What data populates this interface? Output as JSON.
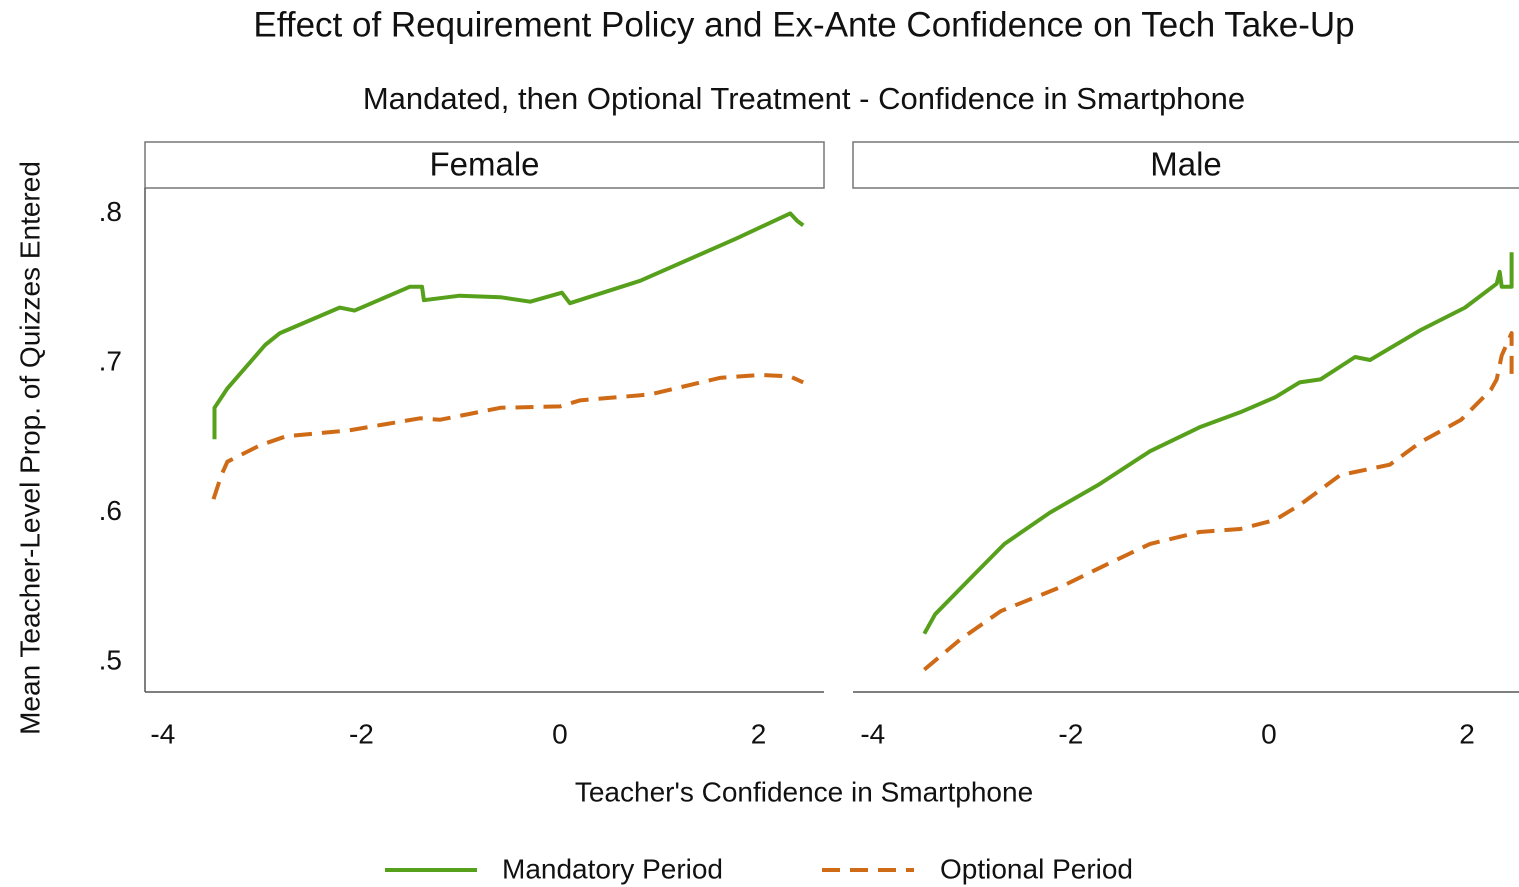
{
  "chart_data": {
    "type": "line",
    "title": "Effect of Requirement Policy and Ex-Ante Confidence on Tech Take-Up",
    "subtitle": "Mandated, then Optional Treatment - Confidence in Smartphone",
    "x_label": "Teacher's Confidence in Smartphone",
    "y_label": "Mean Teacher-Level Prop. of Quizzes Entered",
    "ylim": [
      0.48,
      0.817
    ],
    "yticks": [
      {
        "value": 0.5,
        "label": ".5"
      },
      {
        "value": 0.6,
        "label": ".6"
      },
      {
        "value": 0.7,
        "label": ".7"
      },
      {
        "value": 0.8,
        "label": ".8"
      }
    ],
    "series": [
      {
        "name": "Mandatory Period",
        "color": "#56a01c",
        "dash": "solid"
      },
      {
        "name": "Optional Period",
        "color": "#cf6a16",
        "dash": "dashed"
      }
    ],
    "panels": [
      {
        "title": "Female",
        "xlim": [
          -4.18,
          2.66
        ],
        "xticks": [
          -4,
          -2,
          0,
          2
        ],
        "series": [
          {
            "x": [
              -3.48,
              -3.48,
              -3.35,
              -2.97,
              -2.82,
              -2.22,
              -2.07,
              -1.51,
              -1.39,
              -1.37,
              -1.01,
              -0.6,
              -0.3,
              0.02,
              0.1,
              0.81,
              1.77,
              2.32,
              2.39,
              2.45
            ],
            "values": [
              0.649,
              0.67,
              0.683,
              0.712,
              0.72,
              0.737,
              0.735,
              0.751,
              0.751,
              0.742,
              0.745,
              0.744,
              0.741,
              0.747,
              0.74,
              0.755,
              0.783,
              0.8,
              0.795,
              0.792
            ]
          },
          {
            "x": [
              -3.49,
              -3.41,
              -3.35,
              -3.02,
              -2.76,
              -2.12,
              -1.41,
              -1.21,
              -0.6,
              0,
              0.2,
              0.91,
              1.61,
              2.02,
              2.32,
              2.45
            ],
            "values": [
              0.609,
              0.625,
              0.634,
              0.645,
              0.651,
              0.655,
              0.663,
              0.662,
              0.67,
              0.671,
              0.675,
              0.679,
              0.69,
              0.692,
              0.691,
              0.687
            ]
          }
        ]
      },
      {
        "title": "Male",
        "xlim": [
          -4.2,
          2.525
        ],
        "xticks": [
          -4,
          -2,
          0,
          2
        ],
        "series": [
          {
            "x": [
              -3.48,
              -3.37,
              -2.97,
              -2.67,
              -2.21,
              -1.71,
              -1.2,
              -0.7,
              -0.29,
              0.06,
              0.31,
              0.52,
              0.87,
              1.02,
              1.53,
              1.98,
              2.3,
              2.33,
              2.35,
              2.45,
              2.45
            ],
            "values": [
              0.519,
              0.532,
              0.559,
              0.579,
              0.6,
              0.619,
              0.641,
              0.657,
              0.667,
              0.677,
              0.687,
              0.689,
              0.704,
              0.702,
              0.722,
              0.737,
              0.753,
              0.761,
              0.751,
              0.751,
              0.774
            ]
          },
          {
            "x": [
              -3.48,
              -3.12,
              -2.71,
              -2.11,
              -1.71,
              -1.2,
              -0.7,
              -0.29,
              0.06,
              0.31,
              0.72,
              1.22,
              1.53,
              1.94,
              2.24,
              2.3,
              2.35,
              2.45,
              2.45
            ],
            "values": [
              0.495,
              0.515,
              0.534,
              0.55,
              0.563,
              0.579,
              0.587,
              0.589,
              0.595,
              0.605,
              0.625,
              0.632,
              0.647,
              0.662,
              0.682,
              0.689,
              0.705,
              0.72,
              0.69
            ]
          }
        ]
      }
    ]
  }
}
